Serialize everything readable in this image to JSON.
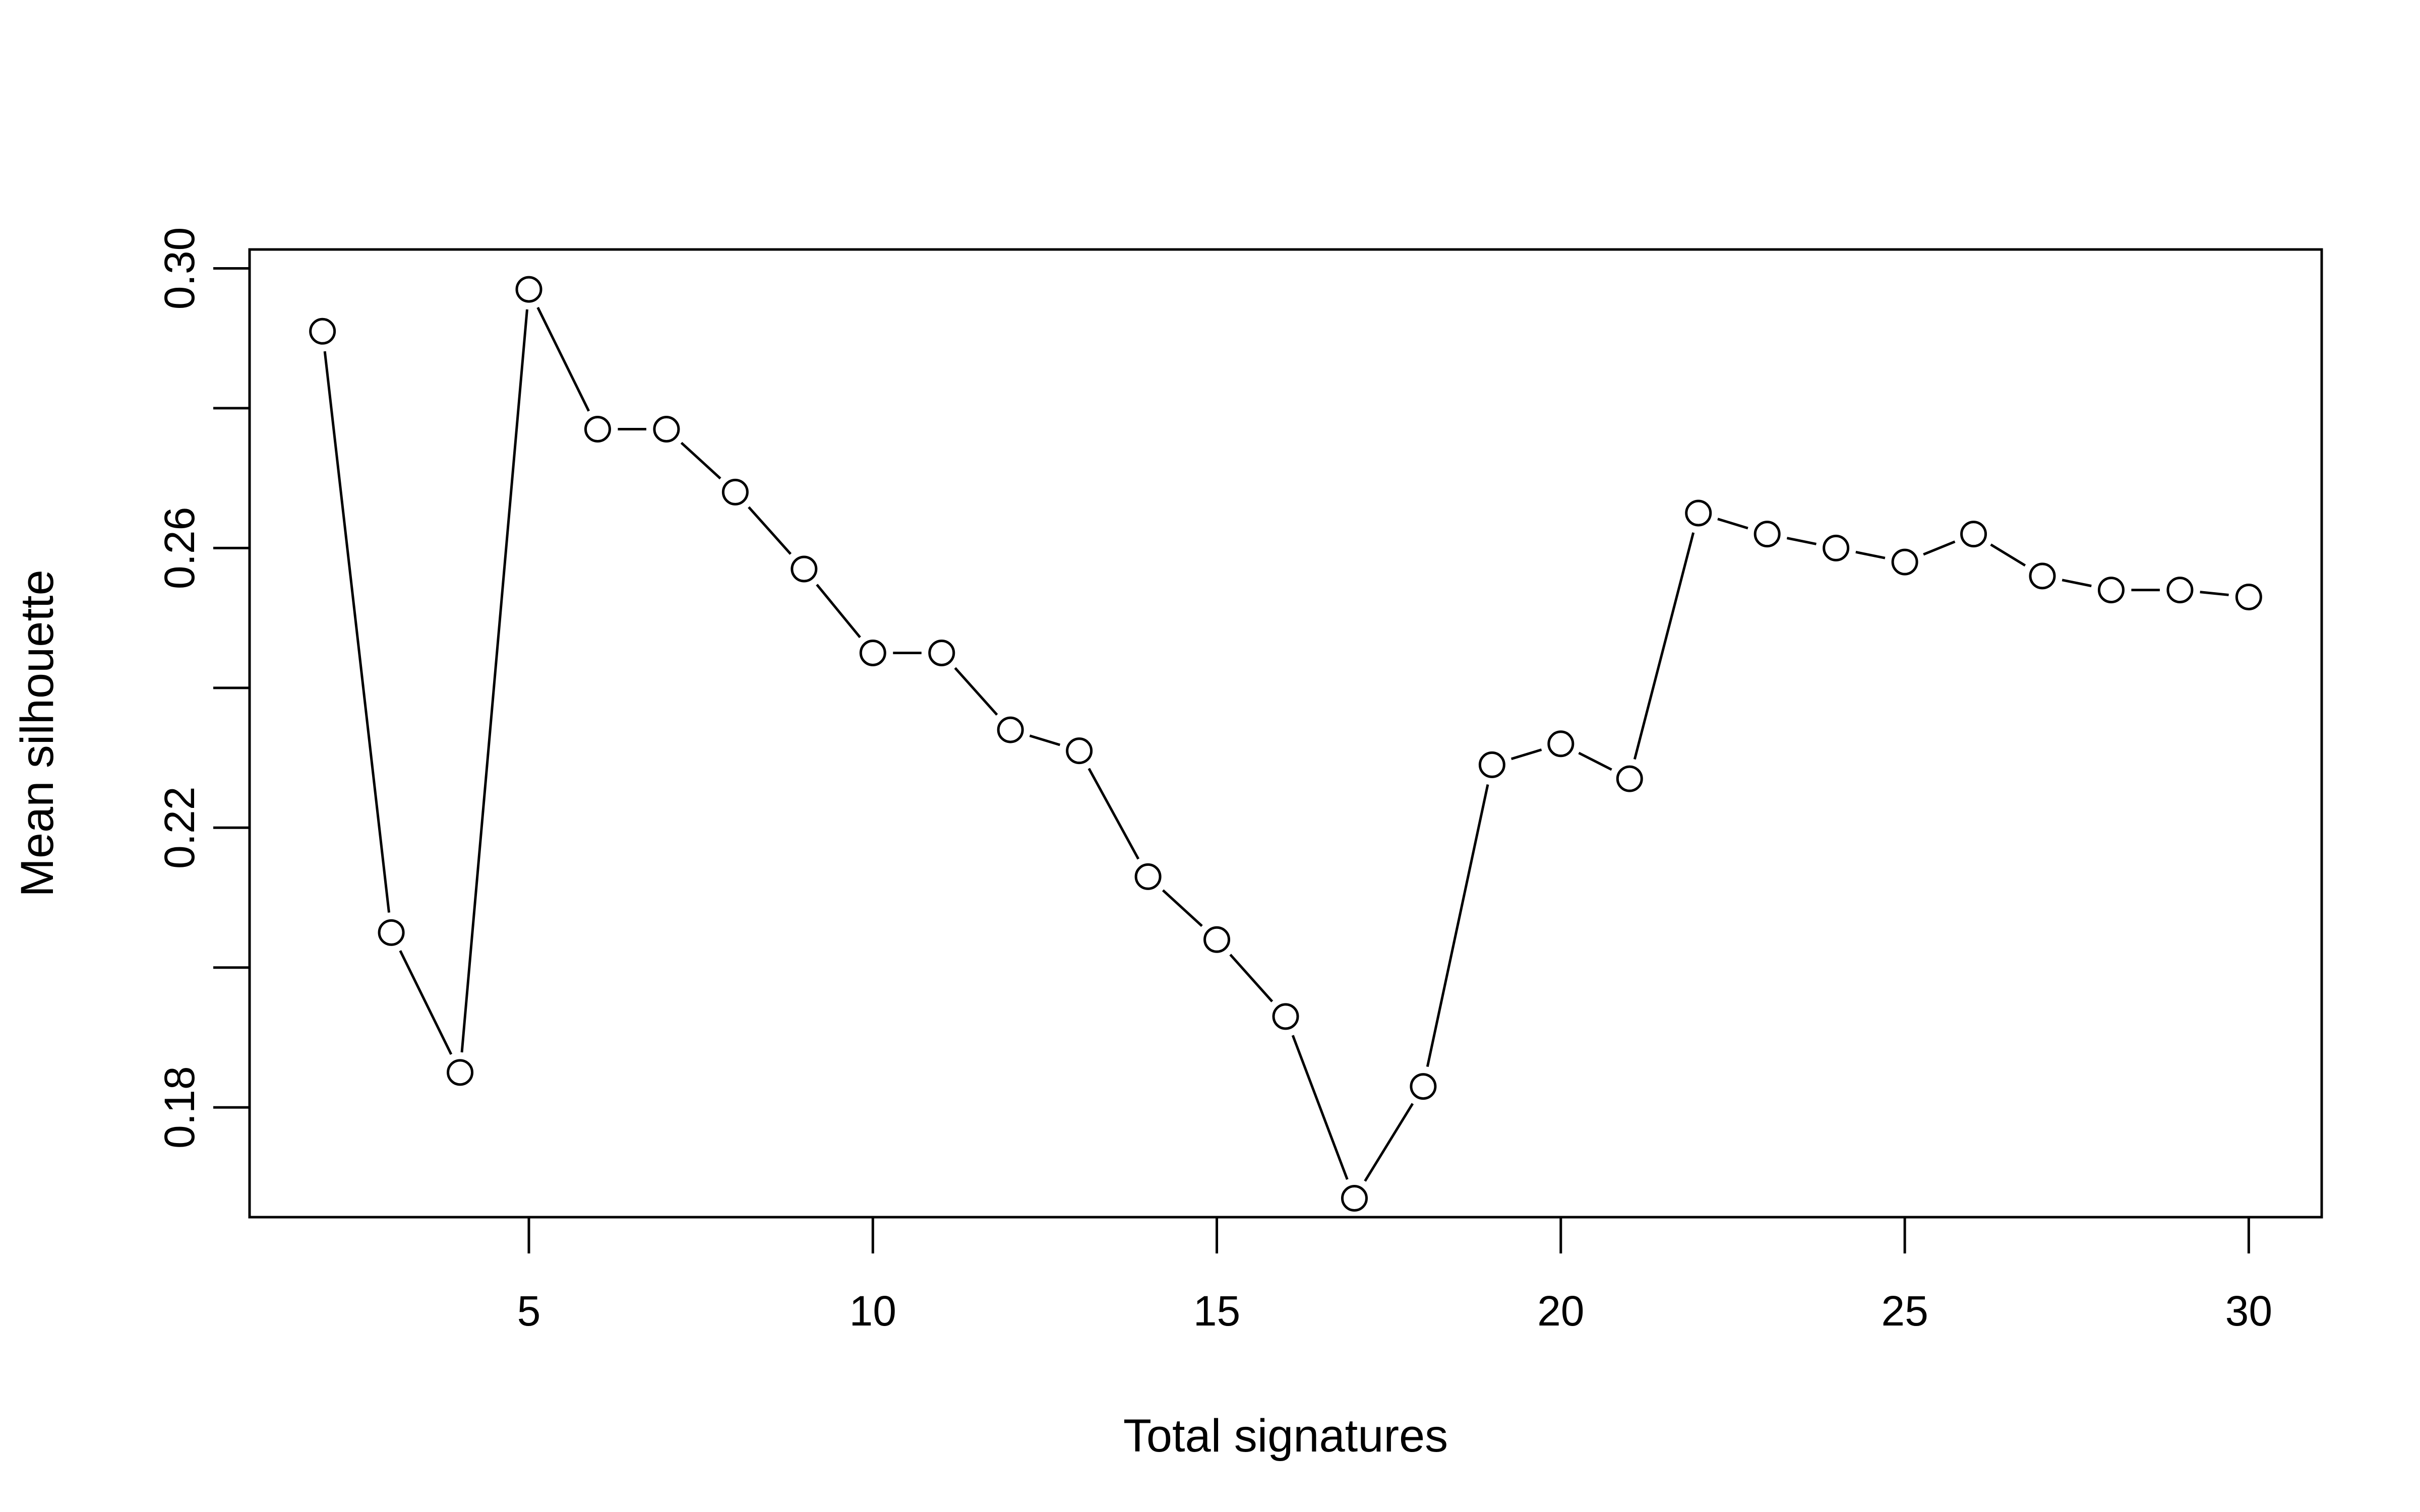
{
  "chart_data": {
    "type": "line",
    "title": "",
    "xlabel": "Total signatures",
    "ylabel": "Mean silhouette",
    "x": [
      2,
      3,
      4,
      5,
      6,
      7,
      8,
      9,
      10,
      11,
      12,
      13,
      14,
      15,
      16,
      17,
      18,
      19,
      20,
      21,
      22,
      23,
      24,
      25,
      26,
      27,
      28,
      29,
      30
    ],
    "series": [
      {
        "values": [
          0.291,
          0.205,
          0.185,
          0.297,
          0.277,
          0.277,
          0.268,
          0.257,
          0.245,
          0.245,
          0.234,
          0.231,
          0.213,
          0.204,
          0.193,
          0.167,
          0.183,
          0.229,
          0.232,
          0.227,
          0.265,
          0.262,
          0.26,
          0.258,
          0.262,
          0.256,
          0.254,
          0.254,
          0.253
        ]
      }
    ],
    "xlim": [
      0.94,
      31.06
    ],
    "ylim": [
      0.1643,
      0.3027
    ],
    "x_ticks": [
      5,
      10,
      15,
      20,
      25,
      30
    ],
    "x_tick_labels": [
      "5",
      "10",
      "15",
      "20",
      "25",
      "30"
    ],
    "y_ticks": [
      0.18,
      0.2,
      0.22,
      0.24,
      0.26,
      0.28,
      0.3
    ],
    "y_tick_labels": [
      "0.18",
      "",
      "0.22",
      "",
      "0.26",
      "",
      "0.30"
    ],
    "marker": "open-circle",
    "line_style": "solid",
    "grid": false,
    "legend": "none",
    "colors": {
      "line": "#000000",
      "marker_fill": "#ffffff",
      "frame": "#000000"
    }
  }
}
